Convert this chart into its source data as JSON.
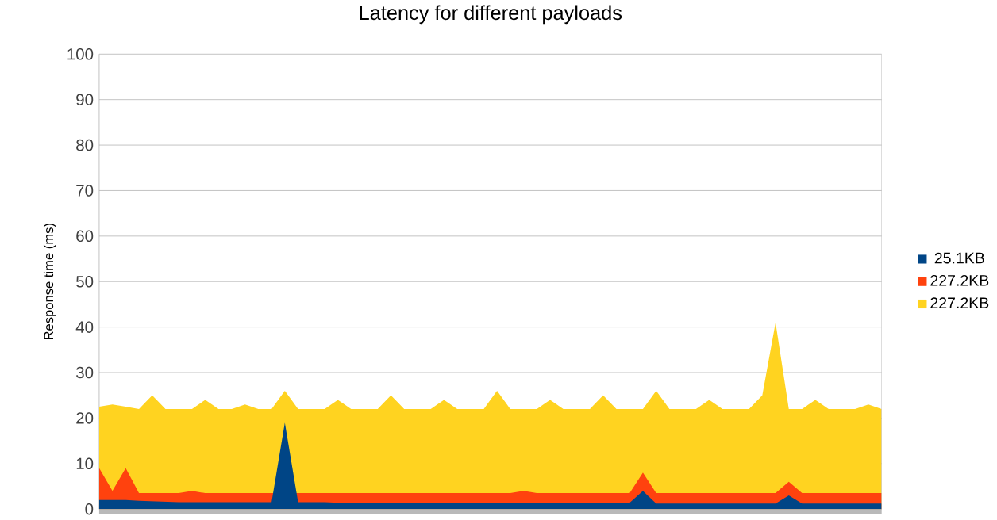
{
  "chart_data": {
    "type": "area",
    "title": "Latency for different payloads",
    "ylabel": "Response time (ms)",
    "categories": [
      null,
      null,
      null,
      null,
      null,
      null,
      null,
      null,
      null,
      null,
      null,
      null,
      null,
      null,
      null,
      null,
      null,
      null,
      null,
      null,
      null,
      null,
      null,
      null,
      null,
      null,
      null,
      null,
      null,
      null,
      null,
      null,
      null,
      null,
      null,
      null,
      null,
      null,
      null,
      null,
      null,
      null,
      null,
      null,
      null,
      null,
      null,
      null,
      null,
      null,
      null,
      null,
      null,
      null,
      null,
      null,
      null,
      null,
      null,
      null
    ],
    "series": [
      {
        "name": "25.1KB",
        "color": "#004586",
        "values": [
          2,
          2,
          2,
          1.8,
          1.7,
          1.6,
          1.5,
          1.5,
          1.5,
          1.5,
          1.5,
          1.5,
          1.5,
          1.5,
          19,
          1.5,
          1.5,
          1.5,
          1.4,
          1.4,
          1.4,
          1.4,
          1.4,
          1.4,
          1.4,
          1.4,
          1.4,
          1.4,
          1.4,
          1.4,
          1.4,
          1.4,
          1.4,
          1.4,
          1.4,
          1.4,
          1.4,
          1.4,
          1.4,
          1.4,
          1.4,
          4,
          1.2,
          1.2,
          1.2,
          1.2,
          1.2,
          1.2,
          1.2,
          1.2,
          1.2,
          1.2,
          3,
          1.2,
          1.2,
          1.2,
          1.2,
          1.2,
          1.2,
          1.2
        ]
      },
      {
        "name": "227.2KB",
        "color": "#ff420e",
        "values": [
          9,
          4,
          9,
          3.5,
          3.5,
          3.5,
          3.5,
          4,
          3.5,
          3.5,
          3.5,
          3.5,
          3.5,
          3.5,
          null,
          3.5,
          3.5,
          3.5,
          3.5,
          3.5,
          3.5,
          3.5,
          3.5,
          3.5,
          3.5,
          3.5,
          3.5,
          3.5,
          3.5,
          3.5,
          3.5,
          3.5,
          4,
          3.5,
          3.5,
          3.5,
          3.5,
          3.5,
          3.5,
          3.5,
          3.5,
          8,
          3.5,
          3.5,
          3.5,
          3.5,
          3.5,
          3.5,
          3.5,
          3.5,
          3.5,
          3.5,
          6,
          3.5,
          3.5,
          3.5,
          3.5,
          3.5,
          3.5,
          3.5
        ]
      },
      {
        "name": "227.2KB",
        "color": "#ffd320",
        "values": [
          22.5,
          23,
          22.5,
          22,
          25,
          22,
          22,
          22,
          24,
          22,
          22,
          23,
          22,
          22,
          26,
          22,
          22,
          22,
          24,
          22,
          22,
          22,
          25,
          22,
          22,
          22,
          24,
          22,
          22,
          22,
          26,
          22,
          22,
          22,
          24,
          22,
          22,
          22,
          25,
          22,
          22,
          22,
          26,
          22,
          22,
          22,
          24,
          22,
          22,
          22,
          25,
          41,
          22,
          22,
          24,
          22,
          22,
          22,
          23,
          22
        ]
      }
    ],
    "ylim": [
      0,
      100
    ],
    "yticks": [
      0,
      10,
      20,
      30,
      40,
      50,
      60,
      70,
      80,
      90,
      100
    ],
    "grid": "y",
    "legend": "right"
  }
}
